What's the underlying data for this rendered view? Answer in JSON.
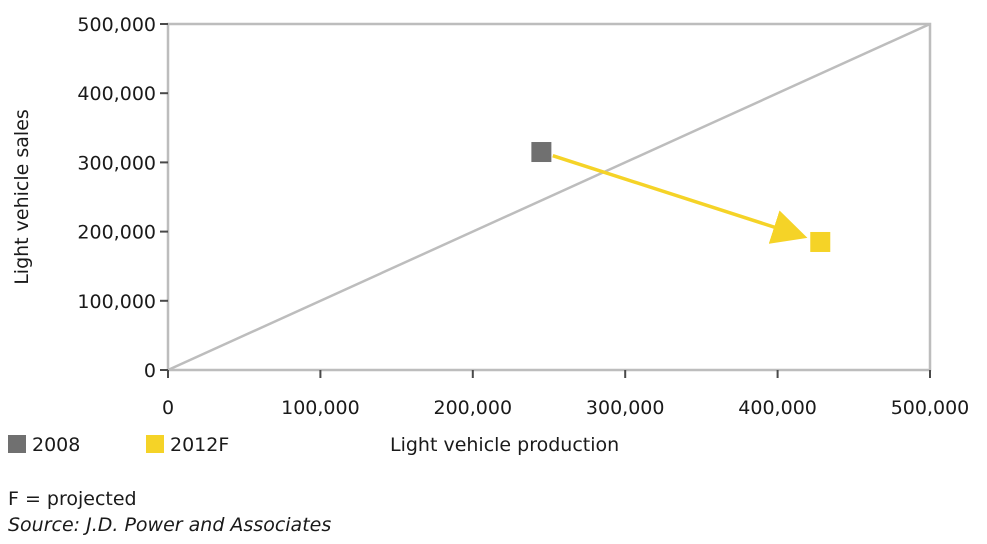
{
  "chart_data": {
    "type": "scatter",
    "xlabel": "Light vehicle production",
    "ylabel": "Light vehicle sales",
    "xlim": [
      0,
      500000
    ],
    "ylim": [
      0,
      500000
    ],
    "x_ticks": [
      {
        "value": 0,
        "label": "0"
      },
      {
        "value": 100000,
        "label": "100,000"
      },
      {
        "value": 200000,
        "label": "200,000"
      },
      {
        "value": 300000,
        "label": "300,000"
      },
      {
        "value": 400000,
        "label": "400,000"
      },
      {
        "value": 500000,
        "label": "500,000"
      }
    ],
    "y_ticks": [
      {
        "value": 0,
        "label": "0"
      },
      {
        "value": 100000,
        "label": "100,000"
      },
      {
        "value": 200000,
        "label": "200,000"
      },
      {
        "value": 300000,
        "label": "300,000"
      },
      {
        "value": 400000,
        "label": "400,000"
      },
      {
        "value": 500000,
        "label": "500,000"
      }
    ],
    "series": [
      {
        "name": "2008",
        "color": "#707070",
        "x": 245000,
        "y": 315000
      },
      {
        "name": "2012F",
        "color": "#f5d327",
        "x": 428000,
        "y": 185000
      }
    ],
    "reference_line": {
      "from": [
        0,
        0
      ],
      "to": [
        500000,
        500000
      ],
      "color": "#bdbdbd"
    },
    "arrow": {
      "from_series": "2008",
      "to_series": "2012F",
      "color": "#f5d327"
    },
    "grid": false,
    "legend_position": "bottom-left"
  },
  "notes": {
    "projected": "F = projected",
    "source": "Source: J.D. Power and Associates"
  }
}
